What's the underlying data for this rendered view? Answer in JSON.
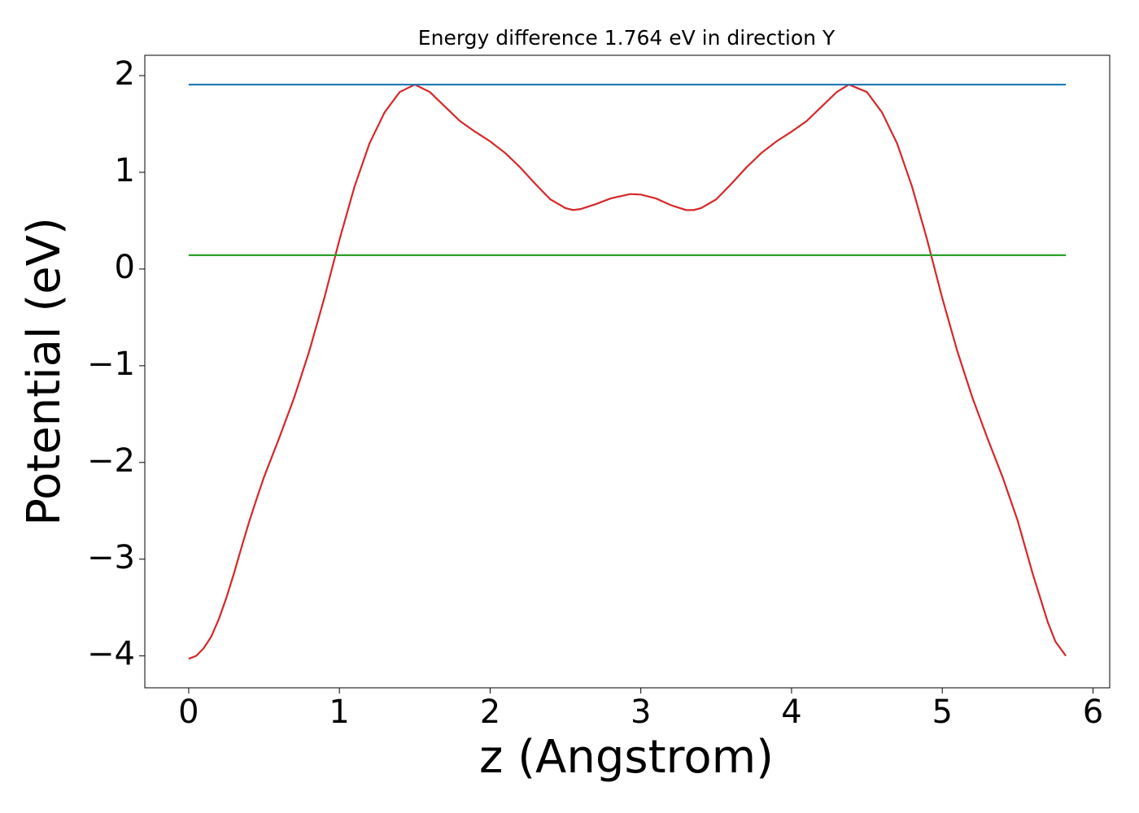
{
  "chart_data": {
    "type": "line",
    "title": "Energy difference 1.764 eV in direction Y",
    "x_label": "z (Angstrom)",
    "y_label": "Potential (eV)",
    "xlim": [
      -0.291,
      6.111
    ],
    "ylim": [
      -4.33,
      2.21
    ],
    "xticks": [
      0,
      1,
      2,
      3,
      4,
      5,
      6
    ],
    "yticks": [
      {
        "value": -4,
        "label": "−4"
      },
      {
        "value": -3,
        "label": "−3"
      },
      {
        "value": -2,
        "label": "−2"
      },
      {
        "value": -1,
        "label": "−1"
      },
      0,
      1,
      2
    ],
    "series": [
      {
        "color": "#d62728",
        "x": [
          0,
          0.05,
          0.1,
          0.15,
          0.2,
          0.25,
          0.3,
          0.35,
          0.4,
          0.45,
          0.5,
          0.6,
          0.7,
          0.8,
          0.9,
          1.0,
          1.1,
          1.2,
          1.3,
          1.4,
          1.5,
          1.6,
          1.7,
          1.8,
          1.9,
          2.0,
          2.1,
          2.2,
          2.3,
          2.4,
          2.5,
          2.55,
          2.6,
          2.7,
          2.8,
          2.93,
          3.0,
          3.1,
          3.2,
          3.3,
          3.35,
          3.4,
          3.5,
          3.6,
          3.7,
          3.8,
          3.9,
          4.0,
          4.1,
          4.2,
          4.3,
          4.38,
          4.5,
          4.6,
          4.7,
          4.8,
          4.9,
          5.0,
          5.1,
          5.2,
          5.3,
          5.4,
          5.5,
          5.6,
          5.7,
          5.75,
          5.82
        ],
        "values": [
          -4.03,
          -4.0,
          -3.92,
          -3.8,
          -3.62,
          -3.4,
          -3.15,
          -2.88,
          -2.62,
          -2.38,
          -2.15,
          -1.75,
          -1.33,
          -0.85,
          -0.3,
          0.3,
          0.85,
          1.3,
          1.62,
          1.83,
          1.907,
          1.83,
          1.68,
          1.53,
          1.42,
          1.32,
          1.2,
          1.05,
          0.88,
          0.72,
          0.63,
          0.61,
          0.62,
          0.67,
          0.73,
          0.775,
          0.77,
          0.73,
          0.66,
          0.61,
          0.61,
          0.63,
          0.72,
          0.88,
          1.05,
          1.2,
          1.32,
          1.42,
          1.53,
          1.68,
          1.83,
          1.907,
          1.83,
          1.62,
          1.3,
          0.85,
          0.3,
          -0.3,
          -0.85,
          -1.33,
          -1.75,
          -2.15,
          -2.6,
          -3.15,
          -3.65,
          -3.85,
          -4.0
        ]
      },
      {
        "color": "#1f77b4",
        "x": [
          0,
          5.82
        ],
        "values": [
          1.907,
          1.907
        ]
      },
      {
        "color": "#2ca02c",
        "x": [
          0,
          5.82
        ],
        "values": [
          0.143,
          0.143
        ]
      }
    ]
  }
}
